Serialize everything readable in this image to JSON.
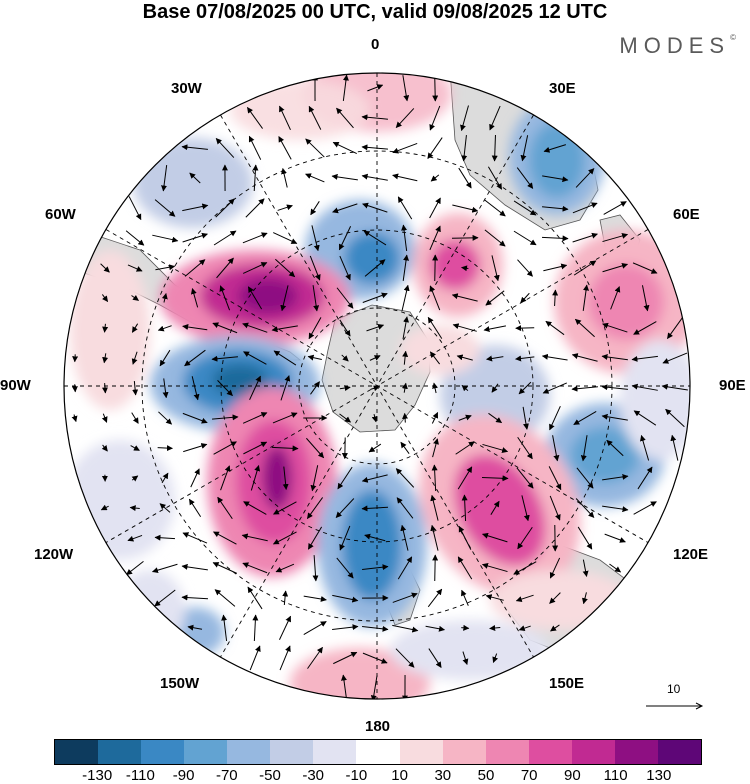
{
  "title": "Base 07/08/2025 00 UTC, valid 09/08/2025 12 UTC",
  "brand": "MODES",
  "brand_mark": "©",
  "longitude_labels": {
    "lon_0": "0",
    "lon_30e": "30E",
    "lon_60e": "60E",
    "lon_90e": "90E",
    "lon_120e": "120E",
    "lon_150e": "150E",
    "lon_180": "180",
    "lon_150w": "150W",
    "lon_120w": "120W",
    "lon_90w": "90W",
    "lon_60w": "60W",
    "lon_30w": "30W"
  },
  "reference_vector": "10",
  "colorbar": {
    "colors": [
      "#0d3b5e",
      "#1e6a9c",
      "#3a88c4",
      "#62a3d2",
      "#96b8e0",
      "#c2cde6",
      "#e2e3f2",
      "#ffffff",
      "#f8dcdf",
      "#f6b5c5",
      "#ee86b2",
      "#de4ea0",
      "#c12a92",
      "#8e0f82",
      "#5e0677"
    ],
    "tick_labels": [
      "-130",
      "-110",
      "-90",
      "-70",
      "-50",
      "-30",
      "-10",
      "10",
      "30",
      "50",
      "70",
      "90",
      "110",
      "130"
    ]
  },
  "colors": {
    "land": "#dcdcdc",
    "coast": "#555555",
    "grid": "#000000"
  }
}
